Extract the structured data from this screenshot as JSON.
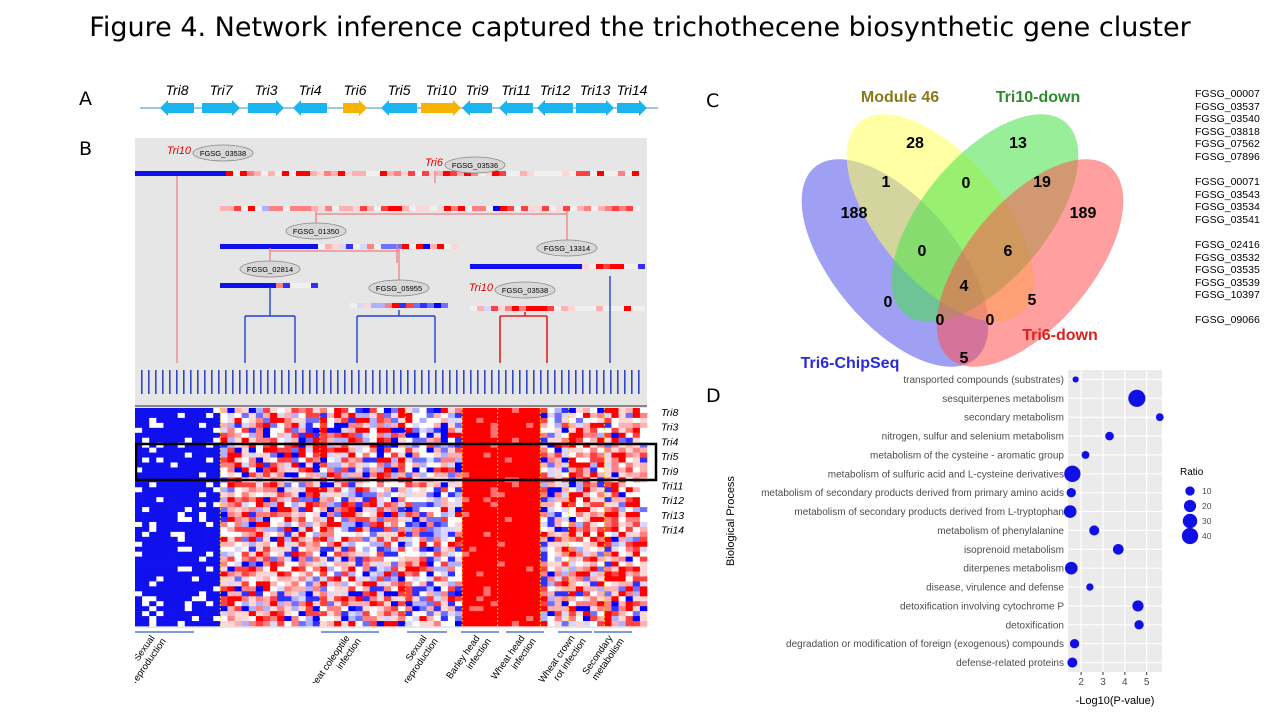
{
  "figure": {
    "title": "Figure 4. Network inference captured the trichothecene biosynthetic gene cluster",
    "panel_labels": [
      "A",
      "B",
      "C",
      "D"
    ]
  },
  "panel_a": {
    "genes": [
      {
        "name": "Tri8",
        "dir": "left",
        "color": "#1ab4ee"
      },
      {
        "name": "Tri7",
        "dir": "right",
        "color": "#1ab4ee"
      },
      {
        "name": "Tri3",
        "dir": "right",
        "color": "#1ab4ee"
      },
      {
        "name": "Tri4",
        "dir": "left",
        "color": "#1ab4ee"
      },
      {
        "name": "Tri6",
        "dir": "right",
        "color": "#f6b400"
      },
      {
        "name": "Tri5",
        "dir": "left",
        "color": "#1ab4ee"
      },
      {
        "name": "Tri10",
        "dir": "right",
        "color": "#f6b400"
      },
      {
        "name": "Tri9",
        "dir": "left",
        "color": "#1ab4ee"
      },
      {
        "name": "Tri11",
        "dir": "left",
        "color": "#1ab4ee"
      },
      {
        "name": "Tri12",
        "dir": "left",
        "color": "#1ab4ee"
      },
      {
        "name": "Tri13",
        "dir": "right",
        "color": "#1ab4ee"
      },
      {
        "name": "Tri14",
        "dir": "right",
        "color": "#1ab4ee"
      }
    ]
  },
  "panel_b": {
    "nodes": [
      {
        "id": "FGSG_03538",
        "tag": "Tri10"
      },
      {
        "id": "FGSG_03536",
        "tag": "Tri6"
      },
      {
        "id": "FGSG_01350",
        "tag": ""
      },
      {
        "id": "FGSG_13314",
        "tag": ""
      },
      {
        "id": "FGSG_02814",
        "tag": ""
      },
      {
        "id": "FGSG_05955",
        "tag": ""
      },
      {
        "id": "FGSG_03538",
        "tag": "Tri10"
      }
    ],
    "row_labels": [
      "Tri8",
      "Tri3",
      "Tri4",
      "Tri5",
      "Tri9",
      "Tri11",
      "Tri12",
      "Tri13",
      "Tri14"
    ],
    "conditions": [
      "Sexual reproduction",
      "Wheat coleoptile infection",
      "Sexual reproduction",
      "Barley head infection",
      "Wheat head infection",
      "Wheat crown rot infection",
      "Secondary metabolism"
    ]
  },
  "panel_c": {
    "sets": [
      "Module 46",
      "Tri10-down",
      "Tri6-ChipSeq",
      "Tri6-down"
    ],
    "set_colors": {
      "Module 46": "#8a7a1a",
      "Tri10-down": "#2e8b2e",
      "Tri6-ChipSeq": "#2a2ad6",
      "Tri6-down": "#e02020"
    },
    "counts": {
      "module_only": "28",
      "tri10_only": "13",
      "chip_only": "188",
      "tri6down_only": "189",
      "module_chip": "1",
      "module_tri10": "0",
      "tri10_tri6down": "19",
      "module_tri10_chip": "0",
      "all_but_chip": "6",
      "all": "4",
      "tri10_chip_tri6down": "5",
      "module_chip_tri6down": "0",
      "chip_tri6down": "5",
      "tri10_chip": "0",
      "module_tri6down": "0"
    },
    "gene_groups": [
      [
        "FGSG_00007",
        "FGSG_03537",
        "FGSG_03540",
        "FGSG_03818",
        "FGSG_07562",
        "FGSG_07896"
      ],
      [
        "FGSG_00071",
        "FGSG_03543",
        "FGSG_03534",
        "FGSG_03541"
      ],
      [
        "FGSG_02416",
        "FGSG_03532",
        "FGSG_03535",
        "FGSG_03539",
        "FGSG_10397"
      ],
      [
        "FGSG_09066"
      ]
    ]
  },
  "chart_data": {
    "type": "scatter",
    "title": "",
    "xlabel": "-Log10(P-value)",
    "ylabel": "Biological Process",
    "x_ticks": [
      2,
      3,
      4,
      5
    ],
    "xlim": [
      1.4,
      5.7
    ],
    "legend_title": "Ratio",
    "legend_values": [
      10,
      20,
      30,
      40
    ],
    "legend_position": "right",
    "point_color": "#1010e6",
    "categories": [
      "transported compounds (substrates)",
      "sesquiterpenes metabolism",
      "secondary metabolism",
      "nitrogen, sulfur and selenium metabolism",
      "metabolism of the cysteine - aromatic group",
      "metabolism of sulfuric acid and L-cysteine derivatives",
      "metabolism of secondary products derived from primary amino acids",
      "metabolism of secondary products derived from L-tryptophan",
      "metabolism of phenylalanine",
      "isoprenoid metabolism",
      "diterpenes metabolism",
      "disease, virulence and defense",
      "detoxification involving cytochrome P",
      "detoxification",
      "degradation or modification of foreign (exogenous) compounds",
      "defense-related proteins"
    ],
    "x": [
      1.75,
      4.55,
      5.6,
      3.3,
      2.2,
      1.6,
      1.55,
      1.5,
      2.6,
      3.7,
      1.55,
      2.4,
      4.6,
      4.65,
      1.7,
      1.6
    ],
    "ratio": [
      3,
      45,
      6,
      8,
      6,
      40,
      10,
      22,
      12,
      14,
      22,
      5,
      16,
      10,
      10,
      12
    ]
  }
}
